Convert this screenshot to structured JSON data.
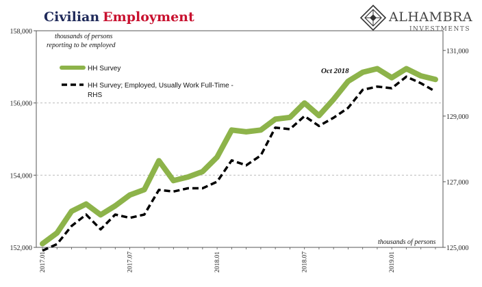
{
  "header": {
    "title_part1": "Civilian",
    "title_part2": "Employment"
  },
  "logo": {
    "name": "ALHAMBRA",
    "sub": "INVESTMENTS",
    "icon": "diamond-lattice-icon"
  },
  "notes": {
    "left_unit_line1": "thousands of persons",
    "left_unit_line2": "reporting to be employed",
    "bottom_unit": "thousands of persons"
  },
  "annotation": "Oct 2018",
  "colors": {
    "hh": "#8db34a",
    "ft": "#000000",
    "grid": "#b0b0b0"
  },
  "chart_data": {
    "type": "line",
    "x": [
      "2017.01",
      "2017.02",
      "2017.03",
      "2017.04",
      "2017.05",
      "2017.06",
      "2017.07",
      "2017.08",
      "2017.09",
      "2017.10",
      "2017.11",
      "2017.12",
      "2018.01",
      "2018.02",
      "2018.03",
      "2018.04",
      "2018.05",
      "2018.06",
      "2018.07",
      "2018.08",
      "2018.09",
      "2018.10",
      "2018.11",
      "2018.12",
      "2019.01",
      "2019.02",
      "2019.03",
      "2019.04"
    ],
    "x_tick_labels": [
      "2017.01",
      "2017.07",
      "2018.01",
      "2018.07",
      "2019.01"
    ],
    "y_left": {
      "ylim": [
        152000,
        158000
      ],
      "ticks": [
        "152,000",
        "154,000",
        "156,000",
        "158,000"
      ],
      "label": "thousands of persons reporting to be employed"
    },
    "y_right": {
      "ylim": [
        125000,
        131600
      ],
      "ticks": [
        "125,000",
        "127,000",
        "129,000",
        "131,000"
      ],
      "label": "thousands of persons"
    },
    "grid": "horizontal dashed",
    "legend_position": "top-left",
    "series": [
      {
        "name": "HH Survey",
        "axis": "left",
        "style": "solid",
        "values": [
          152100,
          152400,
          153000,
          153200,
          152900,
          153150,
          153450,
          153600,
          154400,
          153850,
          153950,
          154100,
          154500,
          155250,
          155200,
          155250,
          155550,
          155600,
          156000,
          155650,
          156100,
          156600,
          156850,
          156950,
          156700,
          156950,
          156750,
          156650
        ]
      },
      {
        "name": "HH Survey; Employed, Usually Work Full-Time - RHS",
        "axis": "right",
        "style": "dashed",
        "values": [
          124900,
          125100,
          125650,
          126000,
          125550,
          126000,
          125900,
          126000,
          126750,
          126700,
          126800,
          126800,
          127000,
          127650,
          127500,
          127800,
          128650,
          128600,
          129000,
          128700,
          128950,
          129250,
          129800,
          129900,
          129850,
          130200,
          130000,
          129750
        ]
      }
    ]
  }
}
